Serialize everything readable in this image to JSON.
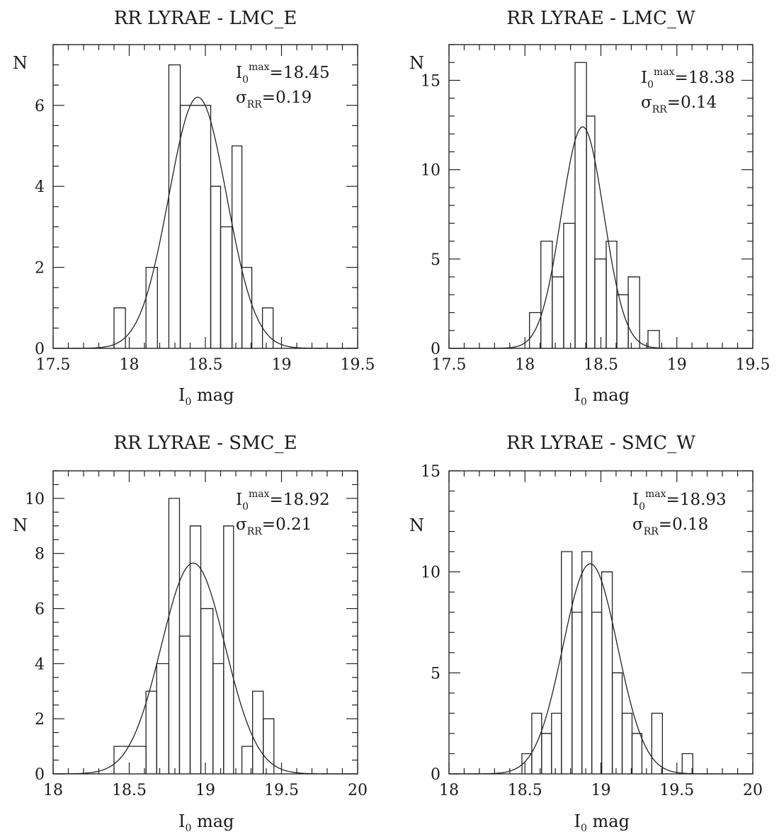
{
  "chart_data": [
    {
      "type": "bar",
      "title": "RR LYRAE - LMC_E",
      "xlabel_main": "I",
      "xlabel_sub": "0",
      "xlabel_rest": " mag",
      "ylabel": "N",
      "xlim": [
        17.5,
        19.5
      ],
      "ylim": [
        0,
        7.5
      ],
      "xticks": [
        "17.5",
        "18",
        "18.5",
        "19",
        "19.5"
      ],
      "yticks": [
        "0",
        "2",
        "4",
        "6"
      ],
      "bins": [
        {
          "x0": 17.9,
          "x1": 17.975,
          "n": 1
        },
        {
          "x0": 17.975,
          "x1": 18.11,
          "n": 0
        },
        {
          "x0": 18.11,
          "x1": 18.185,
          "n": 2
        },
        {
          "x0": 18.185,
          "x1": 18.26,
          "n": 0
        },
        {
          "x0": 18.26,
          "x1": 18.335,
          "n": 7
        },
        {
          "x0": 18.335,
          "x1": 18.535,
          "n": 6
        },
        {
          "x0": 18.535,
          "x1": 18.6,
          "n": 4
        },
        {
          "x0": 18.6,
          "x1": 18.675,
          "n": 3
        },
        {
          "x0": 18.675,
          "x1": 18.74,
          "n": 5
        },
        {
          "x0": 18.74,
          "x1": 18.805,
          "n": 2
        },
        {
          "x0": 18.805,
          "x1": 18.875,
          "n": 0
        },
        {
          "x0": 18.875,
          "x1": 18.945,
          "n": 1
        }
      ],
      "fit": {
        "mu": 18.45,
        "sigma": 0.19,
        "peak": 6.2
      },
      "annotation": {
        "imax_label": "I",
        "imax_sub": "0",
        "imax_sup": "max",
        "imax_value": "=18.45",
        "sigma_label": "σ",
        "sigma_sub": "RR",
        "sigma_value": "=0.19"
      }
    },
    {
      "type": "bar",
      "title": "RR LYRAE - LMC_W",
      "xlabel_main": "I",
      "xlabel_sub": "0",
      "xlabel_rest": " mag",
      "ylabel": "N",
      "xlim": [
        17.5,
        19.5
      ],
      "ylim": [
        0,
        17
      ],
      "xticks": [
        "17.5",
        "18",
        "18.5",
        "19",
        "19.5"
      ],
      "yticks": [
        "0",
        "5",
        "10",
        "15"
      ],
      "bins": [
        {
          "x0": 18.03,
          "x1": 18.105,
          "n": 2
        },
        {
          "x0": 18.105,
          "x1": 18.18,
          "n": 6
        },
        {
          "x0": 18.18,
          "x1": 18.255,
          "n": 4
        },
        {
          "x0": 18.255,
          "x1": 18.33,
          "n": 7
        },
        {
          "x0": 18.33,
          "x1": 18.405,
          "n": 16
        },
        {
          "x0": 18.405,
          "x1": 18.46,
          "n": 13
        },
        {
          "x0": 18.46,
          "x1": 18.535,
          "n": 5
        },
        {
          "x0": 18.535,
          "x1": 18.605,
          "n": 6
        },
        {
          "x0": 18.605,
          "x1": 18.68,
          "n": 3
        },
        {
          "x0": 18.68,
          "x1": 18.755,
          "n": 4
        },
        {
          "x0": 18.755,
          "x1": 18.81,
          "n": 0
        },
        {
          "x0": 18.81,
          "x1": 18.885,
          "n": 1
        }
      ],
      "fit": {
        "mu": 18.38,
        "sigma": 0.14,
        "peak": 12.4
      },
      "annotation": {
        "imax_label": "I",
        "imax_sub": "0",
        "imax_sup": "max",
        "imax_value": "=18.38",
        "sigma_label": "σ",
        "sigma_sub": "RR",
        "sigma_value": "=0.14"
      }
    },
    {
      "type": "bar",
      "title": "RR LYRAE - SMC_E",
      "xlabel_main": "I",
      "xlabel_sub": "0",
      "xlabel_rest": " mag",
      "ylabel": "N",
      "xlim": [
        18,
        20
      ],
      "ylim": [
        0,
        11
      ],
      "xticks": [
        "18",
        "18.5",
        "19",
        "19.5",
        "20"
      ],
      "yticks": [
        "0",
        "2",
        "4",
        "6",
        "8",
        "10"
      ],
      "bins": [
        {
          "x0": 18.4,
          "x1": 18.61,
          "n": 1
        },
        {
          "x0": 18.61,
          "x1": 18.68,
          "n": 3
        },
        {
          "x0": 18.68,
          "x1": 18.76,
          "n": 4
        },
        {
          "x0": 18.76,
          "x1": 18.83,
          "n": 10
        },
        {
          "x0": 18.83,
          "x1": 18.9,
          "n": 5
        },
        {
          "x0": 18.9,
          "x1": 18.97,
          "n": 9
        },
        {
          "x0": 18.97,
          "x1": 19.05,
          "n": 6
        },
        {
          "x0": 19.05,
          "x1": 19.12,
          "n": 4
        },
        {
          "x0": 19.12,
          "x1": 19.185,
          "n": 9
        },
        {
          "x0": 19.185,
          "x1": 19.24,
          "n": 0
        },
        {
          "x0": 19.24,
          "x1": 19.31,
          "n": 1
        },
        {
          "x0": 19.31,
          "x1": 19.38,
          "n": 3
        },
        {
          "x0": 19.38,
          "x1": 19.45,
          "n": 2
        }
      ],
      "fit": {
        "mu": 18.92,
        "sigma": 0.21,
        "peak": 7.65
      },
      "annotation": {
        "imax_label": "I",
        "imax_sub": "0",
        "imax_sup": "max",
        "imax_value": "=18.92",
        "sigma_label": "σ",
        "sigma_sub": "RR",
        "sigma_value": "=0.21"
      }
    },
    {
      "type": "bar",
      "title": "RR LYRAE - SMC_W",
      "xlabel_main": "I",
      "xlabel_sub": "0",
      "xlabel_rest": " mag",
      "ylabel": "N",
      "xlim": [
        18,
        20
      ],
      "ylim": [
        0,
        15
      ],
      "xticks": [
        "18",
        "18.5",
        "19",
        "19.5",
        "20"
      ],
      "yticks": [
        "0",
        "5",
        "10",
        "15"
      ],
      "bins": [
        {
          "x0": 18.48,
          "x1": 18.545,
          "n": 1
        },
        {
          "x0": 18.545,
          "x1": 18.61,
          "n": 3
        },
        {
          "x0": 18.61,
          "x1": 18.675,
          "n": 2
        },
        {
          "x0": 18.675,
          "x1": 18.74,
          "n": 3
        },
        {
          "x0": 18.74,
          "x1": 18.81,
          "n": 11
        },
        {
          "x0": 18.81,
          "x1": 18.875,
          "n": 8
        },
        {
          "x0": 18.875,
          "x1": 18.94,
          "n": 11
        },
        {
          "x0": 18.94,
          "x1": 19.005,
          "n": 8
        },
        {
          "x0": 19.005,
          "x1": 19.075,
          "n": 10
        },
        {
          "x0": 19.075,
          "x1": 19.14,
          "n": 5
        },
        {
          "x0": 19.14,
          "x1": 19.205,
          "n": 3
        },
        {
          "x0": 19.205,
          "x1": 19.27,
          "n": 2
        },
        {
          "x0": 19.27,
          "x1": 19.335,
          "n": 0
        },
        {
          "x0": 19.335,
          "x1": 19.405,
          "n": 3
        },
        {
          "x0": 19.405,
          "x1": 19.535,
          "n": 0
        },
        {
          "x0": 19.535,
          "x1": 19.605,
          "n": 1
        }
      ],
      "fit": {
        "mu": 18.93,
        "sigma": 0.18,
        "peak": 10.4
      },
      "annotation": {
        "imax_label": "I",
        "imax_sub": "0",
        "imax_sup": "max",
        "imax_value": "=18.93",
        "sigma_label": "σ",
        "sigma_sub": "RR",
        "sigma_value": "=0.18"
      }
    }
  ]
}
